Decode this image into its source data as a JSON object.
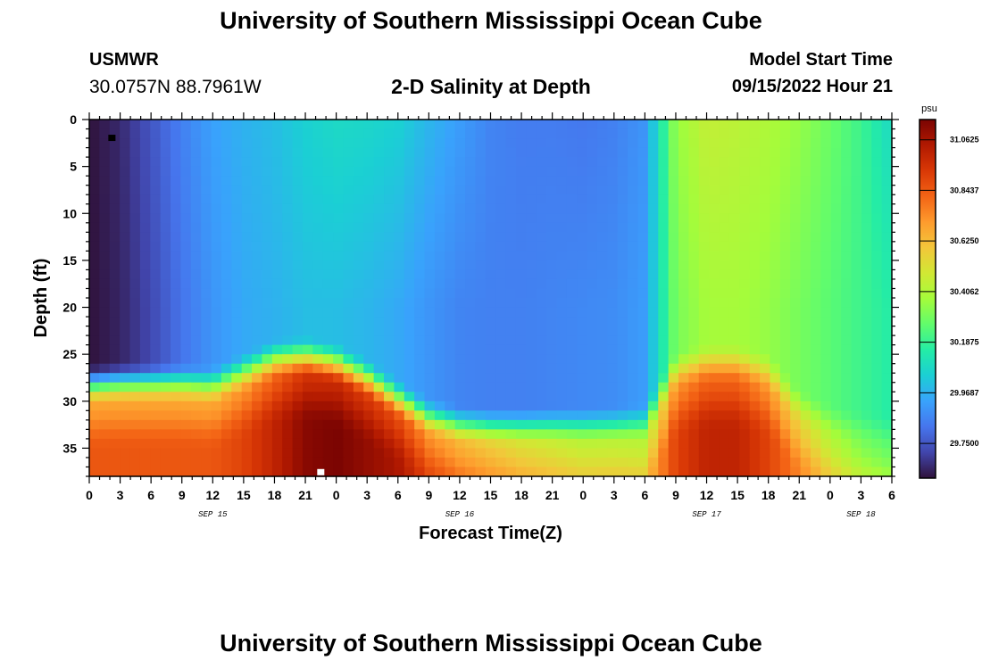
{
  "header": {
    "title": "University of Southern Mississippi Ocean Cube",
    "station": "USMWR",
    "coordinates": "30.0757N  88.7961W",
    "subtitle": "2-D Salinity at Depth",
    "start_label": "Model Start Time",
    "start_value": "09/15/2022 Hour 21"
  },
  "footer": {
    "title": "University of Southern Mississippi Ocean Cube"
  },
  "chart_data": {
    "type": "heatmap",
    "title": "2-D Salinity at Depth",
    "xlabel": "Forecast Time(Z)",
    "ylabel": "Depth (ft)",
    "x_range_hours": [
      0,
      78
    ],
    "ylim": [
      0,
      38
    ],
    "y_inverted": true,
    "x_tick_labels": [
      "0",
      "3",
      "6",
      "9",
      "12",
      "15",
      "18",
      "21",
      "0",
      "3",
      "6",
      "9",
      "12",
      "15",
      "18",
      "21",
      "0",
      "3",
      "6",
      "9",
      "12",
      "15",
      "18",
      "21",
      "0",
      "3",
      "6"
    ],
    "y_ticks": [
      0,
      5,
      10,
      15,
      20,
      25,
      30,
      35
    ],
    "date_labels": [
      {
        "label": "SEP 15",
        "hour": 12
      },
      {
        "label": "SEP 16",
        "hour": 36
      },
      {
        "label": "SEP 17",
        "hour": 60
      },
      {
        "label": "SEP 18",
        "hour": 75
      }
    ],
    "colorbar": {
      "unit": "psu",
      "min": 29.6,
      "max": 31.15,
      "tick_labels": [
        "31.0625",
        "30.8437",
        "30.6250",
        "30.4062",
        "30.1875",
        "29.9687",
        "29.7500"
      ],
      "tick_values": [
        31.0625,
        30.84375,
        30.625,
        30.40625,
        30.1875,
        29.96875,
        29.75
      ],
      "colors": [
        "#30123b",
        "#4145ab",
        "#4675ed",
        "#39a2fc",
        "#1bcfd4",
        "#24eca6",
        "#61fc6c",
        "#a4fc3b",
        "#d1e834",
        "#f3c63a",
        "#fe9b2d",
        "#f36315",
        "#d93806",
        "#b11901",
        "#7a0402"
      ]
    },
    "grid_columns": 79,
    "grid_rows": 38,
    "upper_profile": {
      "hours": [
        0,
        3,
        6,
        9,
        12,
        15,
        18,
        21,
        24,
        27,
        30,
        33,
        36,
        39,
        42,
        45,
        48,
        51,
        54,
        57,
        60,
        63,
        66,
        69,
        72,
        75,
        78
      ],
      "surface_psu": [
        29.6,
        29.65,
        29.75,
        29.85,
        29.93,
        29.97,
        30.0,
        30.05,
        30.08,
        30.07,
        30.05,
        29.98,
        29.92,
        29.86,
        29.84,
        29.84,
        29.83,
        29.85,
        29.9,
        30.35,
        30.45,
        30.43,
        30.4,
        30.35,
        30.28,
        30.2,
        30.08
      ],
      "mid_psu": [
        29.6,
        29.64,
        29.72,
        29.82,
        29.9,
        29.95,
        29.97,
        30.0,
        30.0,
        29.98,
        29.95,
        29.9,
        29.86,
        29.85,
        29.85,
        29.86,
        29.87,
        29.88,
        29.92,
        30.3,
        30.38,
        30.38,
        30.35,
        30.3,
        30.25,
        30.2,
        30.15
      ]
    },
    "bottom_layer": {
      "hours": [
        0,
        3,
        6,
        9,
        12,
        15,
        18,
        21,
        24,
        27,
        30,
        33,
        36,
        39,
        42,
        45,
        48,
        51,
        54,
        57,
        60,
        63,
        66,
        69,
        72,
        75,
        78
      ],
      "interface_depth_ft": [
        29.5,
        29.3,
        29.3,
        29.3,
        29.6,
        28.2,
        26.8,
        26.5,
        27.2,
        28.8,
        31.0,
        33.0,
        33.8,
        34.0,
        34.0,
        33.9,
        33.9,
        33.8,
        33.6,
        28.0,
        27.2,
        27.2,
        28.2,
        32.0,
        33.5,
        34.3,
        34.8
      ],
      "max_psu": [
        30.85,
        30.85,
        30.85,
        30.85,
        30.85,
        30.9,
        31.0,
        31.12,
        31.15,
        31.1,
        31.05,
        30.9,
        30.82,
        30.76,
        30.7,
        30.66,
        30.62,
        30.62,
        30.6,
        30.9,
        31.0,
        31.0,
        30.9,
        30.75,
        30.6,
        30.5,
        30.45
      ]
    },
    "markers": [
      {
        "hour": 2.2,
        "depth_ft": 2,
        "color": "#000000"
      },
      {
        "hour": 22.5,
        "depth_ft": 37.6,
        "color": "#ffffff"
      }
    ]
  }
}
